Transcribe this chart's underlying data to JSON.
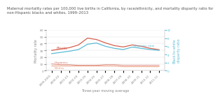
{
  "title": "Maternal mortality rates per 100,000 live births in California, by race/ethnicity, and mortality disparity ratio for\nnon-Hispanic blacks and whites, 1999–2013",
  "xlabel": "Three-year moving average",
  "ylabel_left": "Mortality rate",
  "ylabel_right": "Black-to-white\ndisparity ratio",
  "x_labels": [
    "1999-2001",
    "2000-02",
    "2001-03",
    "2002-04",
    "2003-05",
    "2004-06",
    "2005-07",
    "2006-08",
    "2007-09",
    "2008-10",
    "2009-11",
    "2010-12",
    "2011-13"
  ],
  "blacks": [
    30,
    32,
    34,
    38,
    48,
    46,
    41,
    37,
    35,
    38,
    36,
    33,
    31
  ],
  "disparity": [
    4.2,
    4.5,
    4.8,
    5.2,
    6.5,
    6.8,
    6.0,
    5.5,
    5.2,
    5.8,
    5.5,
    5.2,
    5.0
  ],
  "hispanics": [
    10,
    9,
    9,
    8,
    8,
    8,
    9,
    9,
    8,
    8,
    8,
    8,
    8
  ],
  "whites": [
    7,
    7,
    7,
    7,
    7,
    7,
    7,
    7,
    6,
    6,
    6,
    6,
    6
  ],
  "color_blacks": "#d45f4e",
  "color_teal": "#5bbcd6",
  "color_hispanics": "#d45f4e",
  "color_whites": "#e07a50",
  "ylim_left": [
    0,
    60
  ],
  "ylim_right": [
    0,
    10
  ],
  "bg_color": "#ffffff",
  "title_fontsize": 3.8,
  "label_fontsize": 3.5,
  "tick_fontsize": 3.0,
  "annot_fontsize": 3.5
}
